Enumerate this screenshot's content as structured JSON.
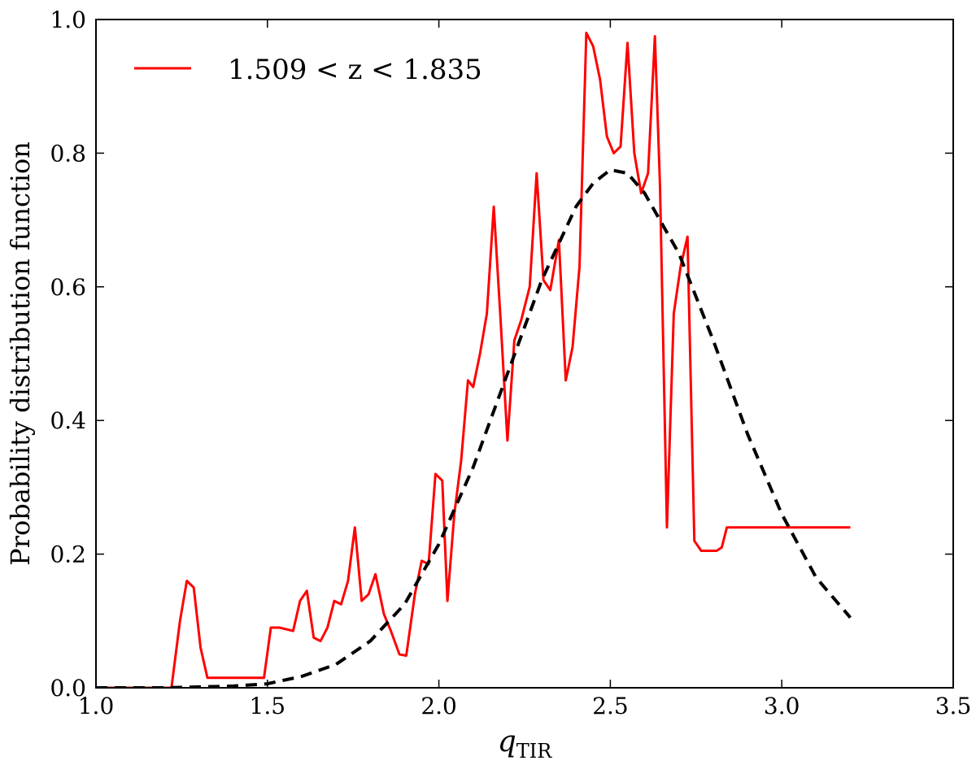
{
  "chart_data": {
    "type": "line",
    "title": "",
    "xlabel": "q",
    "xlabel_subscript": "TIR",
    "ylabel": "Probability distribution function",
    "xlim": [
      1.0,
      3.5
    ],
    "ylim": [
      0.0,
      1.0
    ],
    "x_ticks": [
      1.0,
      1.5,
      2.0,
      2.5,
      3.0,
      3.5
    ],
    "x_tick_labels": [
      "1.0",
      "1.5",
      "2.0",
      "2.5",
      "3.0",
      "3.5"
    ],
    "y_ticks": [
      0.0,
      0.2,
      0.4,
      0.6,
      0.8,
      1.0
    ],
    "y_tick_labels": [
      "0.0",
      "0.2",
      "0.4",
      "0.6",
      "0.8",
      "1.0"
    ],
    "grid": false,
    "legend_position": "top-left",
    "colors": {
      "histogram": "#ff0000",
      "fit": "#000000"
    },
    "series": [
      {
        "name": "1.509 < z < 1.835",
        "style": "solid",
        "color": "#ff0000",
        "x": [
          1.0,
          1.22,
          1.245,
          1.265,
          1.285,
          1.305,
          1.325,
          1.35,
          1.49,
          1.51,
          1.535,
          1.575,
          1.595,
          1.615,
          1.635,
          1.655,
          1.675,
          1.695,
          1.715,
          1.735,
          1.755,
          1.775,
          1.795,
          1.815,
          1.84,
          1.86,
          1.885,
          1.905,
          1.93,
          1.95,
          1.97,
          1.99,
          2.01,
          2.025,
          2.045,
          2.065,
          2.085,
          2.1,
          2.12,
          2.14,
          2.16,
          2.18,
          2.2,
          2.22,
          2.24,
          2.265,
          2.285,
          2.305,
          2.325,
          2.35,
          2.37,
          2.39,
          2.41,
          2.43,
          2.45,
          2.47,
          2.49,
          2.51,
          2.53,
          2.55,
          2.57,
          2.59,
          2.61,
          2.63,
          2.645,
          2.665,
          2.685,
          2.705,
          2.725,
          2.745,
          2.765,
          2.785,
          2.81,
          2.825,
          2.84,
          2.865,
          2.885,
          2.91,
          2.93,
          2.955,
          2.975,
          2.995,
          3.2
        ],
        "y": [
          0.0,
          0.0,
          0.1,
          0.16,
          0.15,
          0.06,
          0.015,
          0.015,
          0.015,
          0.09,
          0.09,
          0.085,
          0.13,
          0.145,
          0.075,
          0.07,
          0.09,
          0.13,
          0.125,
          0.16,
          0.24,
          0.13,
          0.14,
          0.17,
          0.11,
          0.085,
          0.05,
          0.048,
          0.14,
          0.19,
          0.185,
          0.32,
          0.31,
          0.13,
          0.26,
          0.34,
          0.46,
          0.45,
          0.5,
          0.56,
          0.72,
          0.55,
          0.37,
          0.52,
          0.55,
          0.6,
          0.77,
          0.61,
          0.595,
          0.67,
          0.46,
          0.51,
          0.63,
          0.98,
          0.96,
          0.91,
          0.825,
          0.8,
          0.81,
          0.965,
          0.8,
          0.74,
          0.77,
          0.975,
          0.75,
          0.24,
          0.56,
          0.63,
          0.675,
          0.22,
          0.205,
          0.205,
          0.205,
          0.21,
          0.24,
          0.24,
          0.24,
          0.24,
          0.24,
          0.24,
          0.24,
          0.24,
          0.24
        ]
      },
      {
        "name": "",
        "style": "dashed",
        "color": "#000000",
        "x": [
          1.0,
          1.2,
          1.4,
          1.5,
          1.6,
          1.7,
          1.8,
          1.9,
          2.0,
          2.1,
          2.2,
          2.3,
          2.4,
          2.45,
          2.5,
          2.55,
          2.6,
          2.7,
          2.8,
          2.9,
          3.0,
          3.1,
          3.2
        ],
        "y": [
          0.0,
          0.0,
          0.0025,
          0.006,
          0.017,
          0.035,
          0.07,
          0.125,
          0.215,
          0.33,
          0.47,
          0.61,
          0.72,
          0.755,
          0.775,
          0.77,
          0.74,
          0.65,
          0.52,
          0.38,
          0.26,
          0.165,
          0.105
        ]
      }
    ]
  }
}
